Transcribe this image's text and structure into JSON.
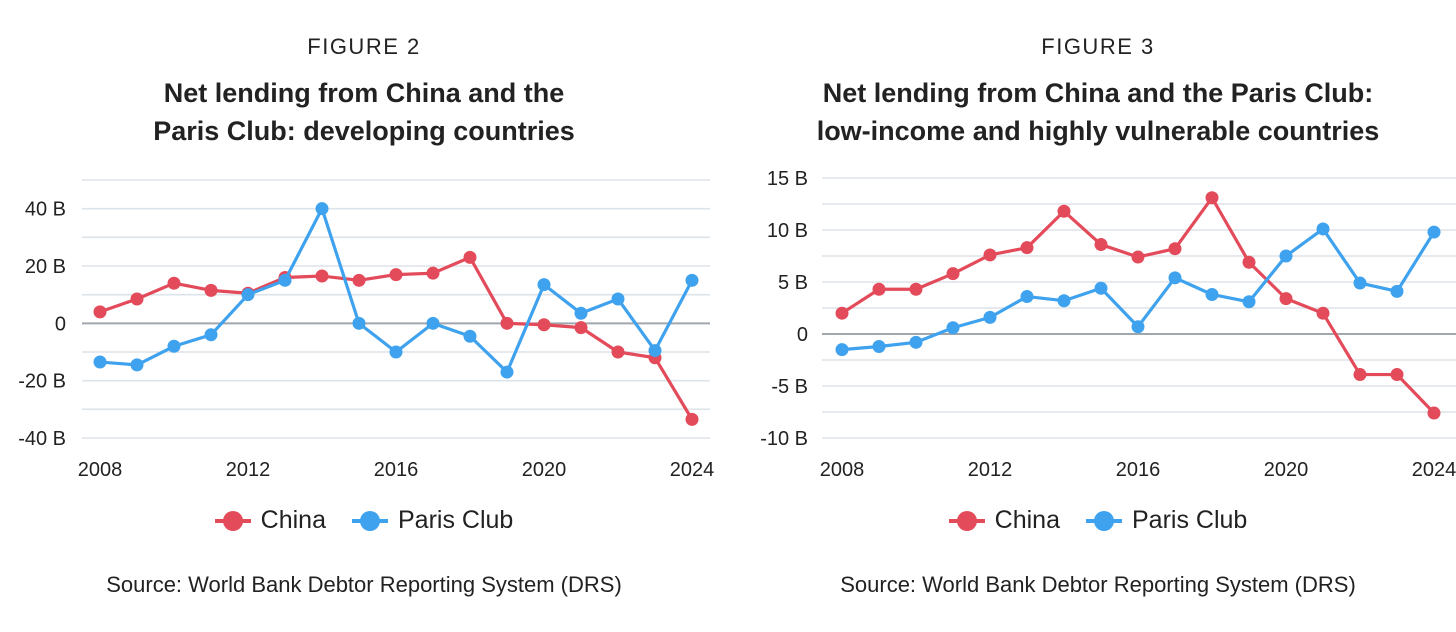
{
  "colors": {
    "china": "#e34a5a",
    "paris": "#3fa2ee",
    "grid": "#dde3ea",
    "zero": "#a0a6ad"
  },
  "chart_data": [
    {
      "type": "line",
      "figure_label": "FIGURE 2",
      "title_lines": [
        "Net lending from China and the",
        "Paris Club: developing countries"
      ],
      "source": "Source: World Bank Debtor Reporting System (DRS)",
      "x": [
        2008,
        2009,
        2010,
        2011,
        2012,
        2013,
        2014,
        2015,
        2016,
        2017,
        2018,
        2019,
        2020,
        2021,
        2022,
        2023,
        2024
      ],
      "xticks": [
        2008,
        2012,
        2016,
        2020,
        2024
      ],
      "xtick_labels": [
        "2008",
        "2012",
        "2016",
        "2020",
        "2024"
      ],
      "yticks": [
        -40,
        -20,
        0,
        20,
        40
      ],
      "ytick_labels": [
        "-40 B",
        "-20 B",
        "0",
        "20 B",
        "40 B"
      ],
      "ylim": [
        -40,
        50
      ],
      "grid": true,
      "legend_position": "bottom",
      "series": [
        {
          "name": "China",
          "key": "china",
          "values": [
            4,
            8.5,
            14,
            11.5,
            10.5,
            16,
            16.5,
            15,
            17,
            17.5,
            23,
            0,
            -0.5,
            -1.5,
            -10,
            -12,
            -33.5
          ]
        },
        {
          "name": "Paris Club",
          "key": "paris",
          "values": [
            -13.5,
            -14.5,
            -8,
            -4,
            10,
            15,
            40,
            0,
            -10,
            0,
            -4.5,
            -17,
            13.5,
            3.5,
            8.5,
            -9.5,
            15
          ]
        }
      ]
    },
    {
      "type": "line",
      "figure_label": "FIGURE 3",
      "title_lines": [
        "Net lending from China and the Paris Club:",
        "low-income and highly vulnerable countries"
      ],
      "source": "Source: World Bank Debtor Reporting System (DRS)",
      "x": [
        2008,
        2009,
        2010,
        2011,
        2012,
        2013,
        2014,
        2015,
        2016,
        2017,
        2018,
        2019,
        2020,
        2021,
        2022,
        2023,
        2024
      ],
      "xticks": [
        2008,
        2012,
        2016,
        2020,
        2024
      ],
      "xtick_labels": [
        "2008",
        "2012",
        "2016",
        "2020",
        "2024"
      ],
      "yticks": [
        -10,
        -5,
        0,
        5,
        10,
        15
      ],
      "ytick_labels": [
        "-10 B",
        "-5 B",
        "0",
        "5 B",
        "10 B",
        "15 B"
      ],
      "ylim": [
        -10,
        15
      ],
      "grid": true,
      "legend_position": "bottom",
      "series": [
        {
          "name": "China",
          "key": "china",
          "values": [
            2,
            4.3,
            4.3,
            5.8,
            7.6,
            8.3,
            11.8,
            8.6,
            7.4,
            8.2,
            13.1,
            6.9,
            3.4,
            2,
            -3.9,
            -3.9,
            -7.6
          ]
        },
        {
          "name": "Paris Club",
          "key": "paris",
          "values": [
            -1.5,
            -1.2,
            -0.8,
            0.6,
            1.6,
            3.6,
            3.2,
            4.4,
            0.7,
            5.4,
            3.8,
            3.1,
            7.5,
            10.1,
            4.9,
            4.1,
            9.8
          ]
        }
      ]
    }
  ]
}
